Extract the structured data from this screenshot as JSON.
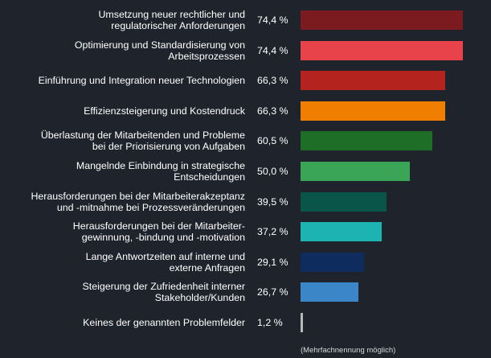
{
  "chart_data": {
    "type": "bar",
    "orientation": "horizontal",
    "value_suffix": " %",
    "xlim": [
      0,
      74.4
    ],
    "categories": [
      "Umsetzung neuer rechtlicher und regulatorischer Anforderungen",
      "Optimierung und Standardisierung von Arbeitsprozessen",
      "Einführung und Integration neuer Technologien",
      "Effizienzsteigerung und Kostendruck",
      "Überlastung der Mitarbeitenden und Probleme bei der Priorisierung von Aufgaben",
      "Mangelnde Einbindung in strategische Entscheidungen",
      "Herausforderungen bei der Mitarbeiterakzeptanz und -mitnahme bei Prozessveränderungen",
      "Herausforderungen bei der Mitarbeiter-gewinnung, -bindung und -motivation",
      "Lange Antwortzeiten auf interne und externe Anfragen",
      "Steigerung der Zufriedenheit interner Stakeholder/Kunden",
      "Keines der genannten Problemfelder"
    ],
    "label_lines": [
      [
        "Umsetzung neuer rechtlicher und",
        "regulatorischer Anforderungen"
      ],
      [
        "Optimierung und Standardisierung von",
        "Arbeitsprozessen"
      ],
      [
        "Einführung und Integration neuer Technologien"
      ],
      [
        "Effizienzsteigerung und Kostendruck"
      ],
      [
        "Überlastung der Mitarbeitenden und Probleme",
        "bei der Priorisierung von Aufgaben"
      ],
      [
        "Mangelnde Einbindung in strategische",
        "Entscheidungen"
      ],
      [
        "Herausforderungen bei der Mitarbeiterakzeptanz",
        "und -mitnahme bei Prozessveränderungen"
      ],
      [
        "Herausforderungen bei der Mitarbeiter-",
        "gewinnung, -bindung und -motivation"
      ],
      [
        "Lange Antwortzeiten auf interne und",
        "externe Anfragen"
      ],
      [
        "Steigerung der Zufriedenheit interner",
        "Stakeholder/Kunden"
      ],
      [
        "Keines der genannten Problemfelder"
      ]
    ],
    "values": [
      74.4,
      74.4,
      66.3,
      66.3,
      60.5,
      50.0,
      39.5,
      37.2,
      29.1,
      26.7,
      1.2
    ],
    "value_labels": [
      "74,4 %",
      "74,4 %",
      "66,3 %",
      "66,3 %",
      "60,5 %",
      "50,0 %",
      "39,5 %",
      "37,2 %",
      "29,1 %",
      "26,7 %",
      "1,2 %"
    ],
    "colors": [
      "#7b1a1f",
      "#e8424a",
      "#b5231f",
      "#f07e00",
      "#1f6e27",
      "#3aa457",
      "#0a5549",
      "#1eb3b3",
      "#0e2d5e",
      "#3a86c6",
      "#b7b9bd"
    ]
  },
  "footnote": "(Mehrfachnennung möglich)"
}
